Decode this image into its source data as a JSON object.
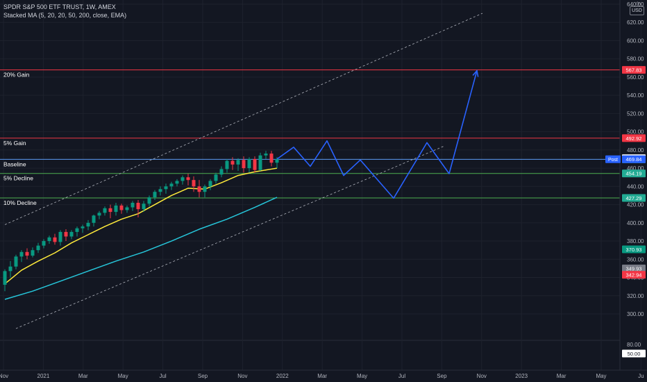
{
  "header": {
    "title": "SPDR S&P 500 ETF TRUST, 1W, AMEX",
    "indicator": "Stacked MA (5, 20, 20, 50, 200, close, EMA)",
    "currency": "USD"
  },
  "chart_data": {
    "type": "candlestick",
    "y_ticks": [
      80,
      300,
      320,
      340,
      360,
      380,
      400,
      420,
      440,
      460,
      480,
      500,
      520,
      540,
      560,
      580,
      600,
      620,
      640
    ],
    "x_ticks": [
      "Nov",
      "2021",
      "Mar",
      "May",
      "Jul",
      "Sep",
      "Nov",
      "2022",
      "Mar",
      "May",
      "Jul",
      "Sep",
      "Nov",
      "2023",
      "Mar",
      "May",
      "Ju"
    ],
    "levels": [
      {
        "name": "20% Gain",
        "value": 567.83,
        "color": "#f23645",
        "tag_color": "#f23645"
      },
      {
        "name": "5% Gain",
        "value": 492.92,
        "color": "#f23645",
        "tag_color": "#f23645"
      },
      {
        "name": "Baseline",
        "value": 469.75,
        "color": "#5b9cf6",
        "tag_color": "#22ab94"
      },
      {
        "name": "5% Decline",
        "value": 454.19,
        "color": "#4caf50",
        "tag_color": "#22ab94"
      },
      {
        "name": "10% Decline",
        "value": 427.29,
        "color": "#4caf50",
        "tag_color": "#22ab94"
      }
    ],
    "price_tags": [
      {
        "label": "470.93",
        "value": 470.93,
        "bg": "#ffffff",
        "fg": "#131722"
      },
      {
        "label": "469.84",
        "value": 469.84,
        "bg": "#2962ff",
        "fg": "#ffffff",
        "prefix": "Post"
      },
      {
        "label": "370.93",
        "value": 370.93,
        "bg": "#089981",
        "fg": "#ffffff"
      },
      {
        "label": "349.93",
        "value": 349.93,
        "bg": "#787b86",
        "fg": "#ffffff"
      },
      {
        "label": "342.94",
        "value": 342.94,
        "bg": "#f23645",
        "fg": "#ffffff"
      },
      {
        "label": "50.00",
        "value": 50.0,
        "bg": "#ffffff",
        "fg": "#131722"
      }
    ],
    "candles": [
      {
        "t": 0,
        "o": 332,
        "h": 349,
        "c": 347,
        "l": 325
      },
      {
        "t": 1,
        "o": 347,
        "h": 358,
        "c": 352,
        "l": 340
      },
      {
        "t": 2,
        "o": 352,
        "h": 365,
        "c": 363,
        "l": 349
      },
      {
        "t": 3,
        "o": 363,
        "h": 370,
        "c": 368,
        "l": 357
      },
      {
        "t": 4,
        "o": 368,
        "h": 372,
        "c": 364,
        "l": 360
      },
      {
        "t": 5,
        "o": 364,
        "h": 373,
        "c": 370,
        "l": 362
      },
      {
        "t": 6,
        "o": 370,
        "h": 378,
        "c": 375,
        "l": 367
      },
      {
        "t": 7,
        "o": 375,
        "h": 382,
        "c": 380,
        "l": 372
      },
      {
        "t": 8,
        "o": 380,
        "h": 386,
        "c": 384,
        "l": 377
      },
      {
        "t": 9,
        "o": 384,
        "h": 388,
        "c": 379,
        "l": 376
      },
      {
        "t": 10,
        "o": 379,
        "h": 392,
        "c": 390,
        "l": 375
      },
      {
        "t": 11,
        "o": 390,
        "h": 393,
        "c": 385,
        "l": 380
      },
      {
        "t": 12,
        "o": 385,
        "h": 392,
        "c": 390,
        "l": 382
      },
      {
        "t": 13,
        "o": 390,
        "h": 396,
        "c": 394,
        "l": 385
      },
      {
        "t": 14,
        "o": 394,
        "h": 398,
        "c": 396,
        "l": 389
      },
      {
        "t": 15,
        "o": 396,
        "h": 403,
        "c": 400,
        "l": 392
      },
      {
        "t": 16,
        "o": 400,
        "h": 409,
        "c": 408,
        "l": 396
      },
      {
        "t": 17,
        "o": 408,
        "h": 413,
        "c": 411,
        "l": 404
      },
      {
        "t": 18,
        "o": 411,
        "h": 418,
        "c": 416,
        "l": 408
      },
      {
        "t": 19,
        "o": 416,
        "h": 420,
        "c": 412,
        "l": 405
      },
      {
        "t": 20,
        "o": 412,
        "h": 422,
        "c": 419,
        "l": 408
      },
      {
        "t": 21,
        "o": 419,
        "h": 421,
        "c": 414,
        "l": 410
      },
      {
        "t": 22,
        "o": 414,
        "h": 419,
        "c": 417,
        "l": 411
      },
      {
        "t": 23,
        "o": 417,
        "h": 424,
        "c": 422,
        "l": 413
      },
      {
        "t": 24,
        "o": 422,
        "h": 425,
        "c": 415,
        "l": 406
      },
      {
        "t": 25,
        "o": 415,
        "h": 424,
        "c": 421,
        "l": 412
      },
      {
        "t": 26,
        "o": 421,
        "h": 430,
        "c": 428,
        "l": 418
      },
      {
        "t": 27,
        "o": 428,
        "h": 436,
        "c": 434,
        "l": 425
      },
      {
        "t": 28,
        "o": 434,
        "h": 440,
        "c": 437,
        "l": 430
      },
      {
        "t": 29,
        "o": 437,
        "h": 443,
        "c": 440,
        "l": 432
      },
      {
        "t": 30,
        "o": 440,
        "h": 445,
        "c": 443,
        "l": 436
      },
      {
        "t": 31,
        "o": 443,
        "h": 448,
        "c": 446,
        "l": 440
      },
      {
        "t": 32,
        "o": 446,
        "h": 452,
        "c": 450,
        "l": 442
      },
      {
        "t": 33,
        "o": 450,
        "h": 454,
        "c": 447,
        "l": 441
      },
      {
        "t": 34,
        "o": 447,
        "h": 451,
        "c": 440,
        "l": 434
      },
      {
        "t": 35,
        "o": 440,
        "h": 447,
        "c": 434,
        "l": 428
      },
      {
        "t": 36,
        "o": 434,
        "h": 442,
        "c": 440,
        "l": 428
      },
      {
        "t": 37,
        "o": 440,
        "h": 448,
        "c": 446,
        "l": 436
      },
      {
        "t": 38,
        "o": 446,
        "h": 455,
        "c": 453,
        "l": 443
      },
      {
        "t": 39,
        "o": 453,
        "h": 462,
        "c": 459,
        "l": 450
      },
      {
        "t": 40,
        "o": 459,
        "h": 470,
        "c": 468,
        "l": 455
      },
      {
        "t": 41,
        "o": 468,
        "h": 472,
        "c": 464,
        "l": 458
      },
      {
        "t": 42,
        "o": 464,
        "h": 471,
        "c": 469,
        "l": 457
      },
      {
        "t": 43,
        "o": 469,
        "h": 473,
        "c": 460,
        "l": 455
      },
      {
        "t": 44,
        "o": 460,
        "h": 472,
        "c": 470,
        "l": 455
      },
      {
        "t": 45,
        "o": 470,
        "h": 473,
        "c": 458,
        "l": 455
      },
      {
        "t": 46,
        "o": 458,
        "h": 477,
        "c": 474,
        "l": 457
      },
      {
        "t": 47,
        "o": 474,
        "h": 479,
        "c": 476,
        "l": 470
      },
      {
        "t": 48,
        "o": 476,
        "h": 479,
        "c": 466,
        "l": 462
      },
      {
        "t": 49,
        "o": 466,
        "h": 472,
        "c": 470,
        "l": 460
      }
    ],
    "ma_yellow": [
      [
        0,
        333
      ],
      [
        3,
        348
      ],
      [
        6,
        358
      ],
      [
        9,
        367
      ],
      [
        12,
        378
      ],
      [
        15,
        387
      ],
      [
        18,
        396
      ],
      [
        21,
        404
      ],
      [
        24,
        410
      ],
      [
        27,
        420
      ],
      [
        30,
        430
      ],
      [
        33,
        438
      ],
      [
        36,
        437
      ],
      [
        39,
        444
      ],
      [
        42,
        452
      ],
      [
        45,
        456
      ],
      [
        48,
        459
      ],
      [
        49,
        460
      ]
    ],
    "ma_cyan": [
      [
        0,
        316
      ],
      [
        5,
        325
      ],
      [
        10,
        336
      ],
      [
        15,
        347
      ],
      [
        20,
        358
      ],
      [
        25,
        368
      ],
      [
        30,
        380
      ],
      [
        35,
        393
      ],
      [
        40,
        404
      ],
      [
        45,
        417
      ],
      [
        49,
        428
      ]
    ],
    "projection": [
      [
        49,
        470
      ],
      [
        52,
        483
      ],
      [
        55,
        462
      ],
      [
        58,
        490
      ],
      [
        61,
        452
      ],
      [
        64,
        469
      ],
      [
        70,
        427
      ],
      [
        76,
        488
      ],
      [
        80,
        454
      ],
      [
        85,
        567
      ]
    ],
    "channel_upper": [
      [
        0,
        398
      ],
      [
        86,
        630
      ]
    ],
    "channel_lower": [
      [
        2,
        284
      ],
      [
        79,
        484
      ]
    ]
  }
}
